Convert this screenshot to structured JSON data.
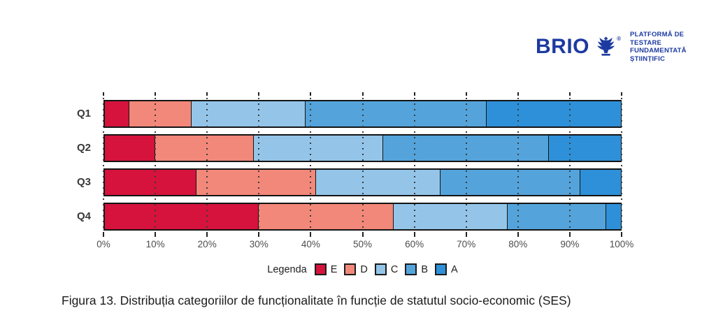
{
  "logo": {
    "brand": "BRIO",
    "registered_mark": "®",
    "tagline_line1": "PLATFORMĂ DE TESTARE",
    "tagline_line2": "FUNDAMENTATĂ ȘTIINȚIFIC",
    "brand_color": "#1c3aa0"
  },
  "chart_data": {
    "type": "bar",
    "orientation": "horizontal",
    "stacked": true,
    "unit": "percent",
    "categories": [
      "Q1",
      "Q2",
      "Q3",
      "Q4"
    ],
    "series": [
      {
        "name": "E",
        "color": "#d5133d",
        "values": [
          5,
          10,
          18,
          30
        ]
      },
      {
        "name": "D",
        "color": "#f2887a",
        "values": [
          12,
          19,
          23,
          26
        ]
      },
      {
        "name": "C",
        "color": "#94c5e9",
        "values": [
          22,
          25,
          24,
          22
        ]
      },
      {
        "name": "B",
        "color": "#54a4db",
        "values": [
          35,
          32,
          27,
          19
        ]
      },
      {
        "name": "A",
        "color": "#2e90d8",
        "values": [
          26,
          14,
          8,
          3
        ]
      }
    ],
    "xlim": [
      0,
      100
    ],
    "x_ticks": [
      "0%",
      "10%",
      "20%",
      "30%",
      "40%",
      "50%",
      "60%",
      "70%",
      "80%",
      "90%",
      "100%"
    ],
    "grid": "dotted-vertical",
    "legend_label": "Legenda",
    "legend_order": [
      "E",
      "D",
      "C",
      "B",
      "A"
    ],
    "legend_position": "bottom-center"
  },
  "caption": "Figura 13. Distribuția categoriilor de funcționalitate în funcție de statutul socio-economic (SES)"
}
